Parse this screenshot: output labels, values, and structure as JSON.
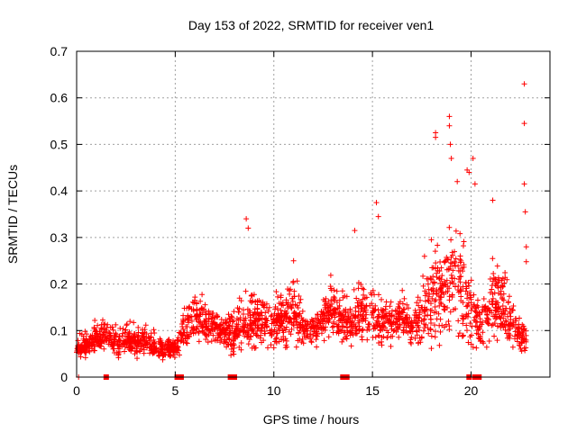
{
  "chart_data": {
    "type": "scatter",
    "title": "Day 153 of 2022, SRMTID for receiver ven1",
    "xlabel": "GPS time / hours",
    "ylabel": "SRMTID / TECUs",
    "xlim": [
      0,
      24
    ],
    "ylim": [
      0,
      0.7
    ],
    "xticks": [
      "0",
      "5",
      "10",
      "15",
      "20"
    ],
    "yticks": [
      "0",
      "0.1",
      "0.2",
      "0.3",
      "0.4",
      "0.5",
      "0.6",
      "0.7"
    ],
    "grid": true,
    "marker": "+",
    "color": "#ff0000",
    "envelope_hours": [
      0,
      0.5,
      1,
      1.5,
      2,
      2.5,
      3,
      3.5,
      4,
      4.5,
      5,
      5.5,
      6,
      6.5,
      7,
      7.5,
      8,
      8.5,
      9,
      9.5,
      10,
      10.5,
      11,
      11.5,
      12,
      12.5,
      13,
      13.5,
      14,
      14.5,
      15,
      15.5,
      16,
      16.5,
      17,
      17.5,
      18,
      18.5,
      19,
      19.5,
      20,
      20.5,
      21,
      21.5,
      22,
      22.5,
      22.8
    ],
    "envelope_median": [
      0.06,
      0.07,
      0.08,
      0.09,
      0.07,
      0.08,
      0.07,
      0.08,
      0.06,
      0.06,
      0.06,
      0.1,
      0.13,
      0.12,
      0.11,
      0.1,
      0.09,
      0.12,
      0.13,
      0.12,
      0.11,
      0.12,
      0.15,
      0.1,
      0.1,
      0.12,
      0.14,
      0.12,
      0.11,
      0.14,
      0.13,
      0.12,
      0.12,
      0.13,
      0.1,
      0.13,
      0.16,
      0.18,
      0.2,
      0.18,
      0.15,
      0.1,
      0.15,
      0.16,
      0.12,
      0.08,
      0.08
    ],
    "envelope_spread": [
      0.03,
      0.03,
      0.04,
      0.04,
      0.04,
      0.04,
      0.04,
      0.04,
      0.03,
      0.03,
      0.03,
      0.06,
      0.06,
      0.06,
      0.05,
      0.05,
      0.05,
      0.08,
      0.09,
      0.07,
      0.06,
      0.08,
      0.1,
      0.05,
      0.05,
      0.06,
      0.06,
      0.07,
      0.06,
      0.09,
      0.07,
      0.06,
      0.06,
      0.06,
      0.05,
      0.08,
      0.12,
      0.15,
      0.16,
      0.14,
      0.12,
      0.06,
      0.12,
      0.1,
      0.08,
      0.05,
      0.05
    ],
    "outliers": [
      {
        "x": 8.6,
        "y": 0.34
      },
      {
        "x": 8.7,
        "y": 0.32
      },
      {
        "x": 11.0,
        "y": 0.25
      },
      {
        "x": 14.1,
        "y": 0.315
      },
      {
        "x": 15.2,
        "y": 0.375
      },
      {
        "x": 15.3,
        "y": 0.345
      },
      {
        "x": 18.2,
        "y": 0.525
      },
      {
        "x": 18.2,
        "y": 0.515
      },
      {
        "x": 18.9,
        "y": 0.56
      },
      {
        "x": 18.9,
        "y": 0.54
      },
      {
        "x": 18.95,
        "y": 0.5
      },
      {
        "x": 19.0,
        "y": 0.47
      },
      {
        "x": 19.3,
        "y": 0.42
      },
      {
        "x": 19.8,
        "y": 0.445
      },
      {
        "x": 19.9,
        "y": 0.44
      },
      {
        "x": 20.1,
        "y": 0.47
      },
      {
        "x": 20.2,
        "y": 0.415
      },
      {
        "x": 21.1,
        "y": 0.38
      },
      {
        "x": 22.7,
        "y": 0.63
      },
      {
        "x": 22.7,
        "y": 0.545
      },
      {
        "x": 22.7,
        "y": 0.415
      },
      {
        "x": 22.75,
        "y": 0.355
      },
      {
        "x": 22.8,
        "y": 0.28
      },
      {
        "x": 22.8,
        "y": 0.248
      }
    ],
    "zero_marks_hours": [
      1.5,
      5.1,
      5.3,
      7.8,
      8.0,
      13.5,
      13.6,
      13.7,
      19.9,
      20.2,
      20.3,
      20.4
    ]
  }
}
